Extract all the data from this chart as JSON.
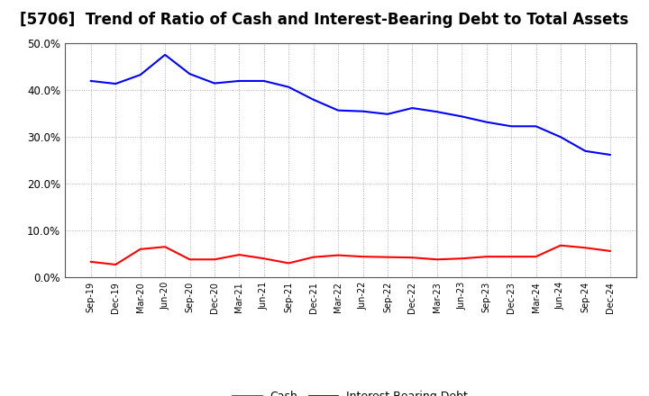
{
  "title": "[5706]  Trend of Ratio of Cash and Interest-Bearing Debt to Total Assets",
  "x_labels": [
    "Sep-19",
    "Dec-19",
    "Mar-20",
    "Jun-20",
    "Sep-20",
    "Dec-20",
    "Mar-21",
    "Jun-21",
    "Sep-21",
    "Dec-21",
    "Mar-22",
    "Jun-22",
    "Sep-22",
    "Dec-22",
    "Mar-23",
    "Jun-23",
    "Sep-23",
    "Dec-23",
    "Mar-24",
    "Jun-24",
    "Sep-24",
    "Dec-24"
  ],
  "cash": [
    0.033,
    0.027,
    0.06,
    0.065,
    0.038,
    0.038,
    0.048,
    0.04,
    0.03,
    0.043,
    0.047,
    0.044,
    0.043,
    0.042,
    0.038,
    0.04,
    0.044,
    0.044,
    0.044,
    0.068,
    0.063,
    0.056
  ],
  "debt": [
    0.42,
    0.414,
    0.433,
    0.476,
    0.435,
    0.415,
    0.42,
    0.42,
    0.407,
    0.38,
    0.357,
    0.355,
    0.349,
    0.362,
    0.354,
    0.344,
    0.332,
    0.323,
    0.323,
    0.3,
    0.27,
    0.262
  ],
  "cash_color": "#ff0000",
  "debt_color": "#0000ff",
  "ylim": [
    0.0,
    0.5
  ],
  "yticks": [
    0.0,
    0.1,
    0.2,
    0.3,
    0.4,
    0.5
  ],
  "background_color": "#ffffff",
  "grid_color": "#aaaaaa",
  "title_fontsize": 12,
  "legend_labels": [
    "Cash",
    "Interest-Bearing Debt"
  ]
}
